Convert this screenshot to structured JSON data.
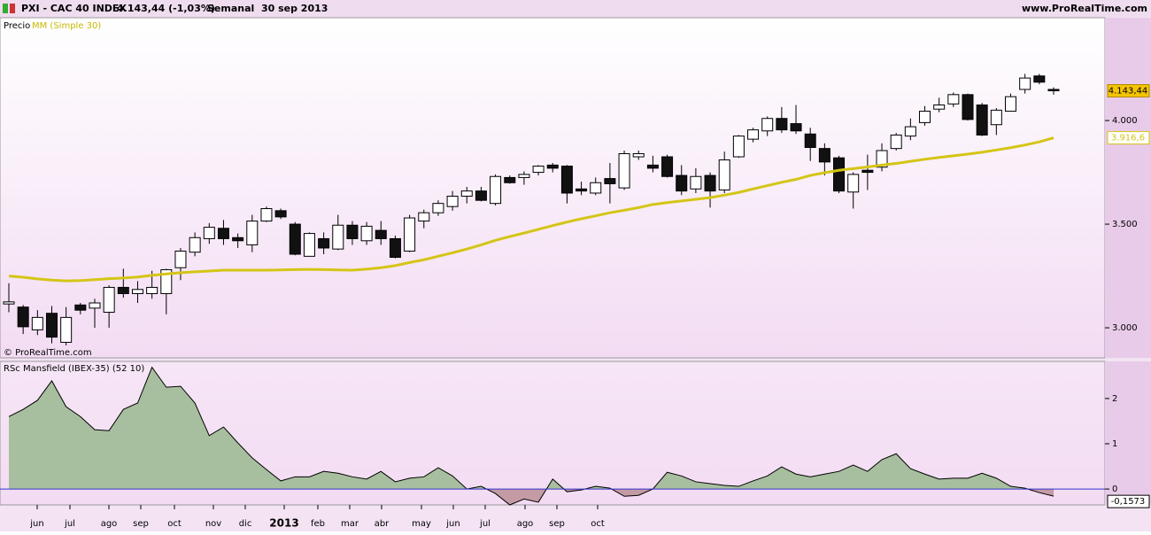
{
  "header": {
    "symbol": "PXI - CAC 40 INDEX",
    "quote": "4.143,44 (-1,03%)",
    "period": "Semanal  30 sep 2013",
    "site": "www.ProRealTime.com"
  },
  "chart_data": [
    {
      "type": "candlestick",
      "label": "Precio",
      "watermark": "© ProRealTime.com",
      "ylim": [
        2855,
        4496
      ],
      "yticks": [
        {
          "value": 4000,
          "label": "4.000"
        },
        {
          "value": 3500,
          "label": "3.500"
        },
        {
          "value": 3000,
          "label": "3.000"
        }
      ],
      "open": [
        3115,
        3100,
        2990,
        3070,
        2930,
        3110,
        3095,
        3075,
        3195,
        3165,
        3165,
        3165,
        3290,
        3365,
        3430,
        3480,
        3435,
        3400,
        3515,
        3565,
        3500,
        3345,
        3430,
        3380,
        3495,
        3420,
        3470,
        3430,
        3370,
        3515,
        3555,
        3585,
        3635,
        3660,
        3600,
        3725,
        3725,
        3750,
        3785,
        3780,
        3670,
        3650,
        3720,
        3675,
        3825,
        3785,
        3825,
        3735,
        3670,
        3735,
        3665,
        3825,
        3910,
        3950,
        4010,
        3985,
        3935,
        3865,
        3820,
        3655,
        3760,
        3775,
        3865,
        3925,
        3990,
        4055,
        4080,
        4125,
        4075,
        3980,
        4045,
        4150,
        4215,
        4150
      ],
      "high": [
        3215,
        3110,
        3085,
        3105,
        3100,
        3120,
        3140,
        3205,
        3285,
        3225,
        3275,
        3285,
        3385,
        3460,
        3505,
        3520,
        3455,
        3545,
        3585,
        3575,
        3510,
        3460,
        3460,
        3545,
        3515,
        3510,
        3515,
        3445,
        3545,
        3570,
        3615,
        3660,
        3680,
        3680,
        3740,
        3735,
        3755,
        3785,
        3795,
        3785,
        3705,
        3725,
        3795,
        3855,
        3855,
        3830,
        3835,
        3785,
        3770,
        3750,
        3850,
        3930,
        3965,
        4020,
        4065,
        4075,
        3965,
        3890,
        3830,
        3750,
        3835,
        3890,
        3940,
        4010,
        4070,
        4110,
        4135,
        4130,
        4085,
        4060,
        4130,
        4225,
        4225,
        4160
      ],
      "low": [
        3075,
        2970,
        2965,
        2925,
        2915,
        3065,
        3000,
        3000,
        3145,
        3120,
        3140,
        3065,
        3230,
        3345,
        3405,
        3400,
        3385,
        3365,
        3510,
        3525,
        3350,
        3345,
        3355,
        3375,
        3400,
        3400,
        3400,
        3335,
        3365,
        3480,
        3540,
        3565,
        3600,
        3610,
        3590,
        3695,
        3690,
        3735,
        3750,
        3600,
        3640,
        3640,
        3600,
        3665,
        3810,
        3750,
        3725,
        3640,
        3650,
        3580,
        3650,
        3820,
        3895,
        3925,
        3940,
        3935,
        3805,
        3735,
        3650,
        3575,
        3665,
        3755,
        3855,
        3905,
        3975,
        4040,
        4065,
        4000,
        3925,
        3930,
        4045,
        4130,
        4175,
        4125
      ],
      "close": [
        3125,
        3005,
        3050,
        2955,
        3050,
        3085,
        3120,
        3195,
        3165,
        3185,
        3195,
        3280,
        3370,
        3435,
        3485,
        3430,
        3420,
        3515,
        3575,
        3535,
        3355,
        3455,
        3385,
        3495,
        3430,
        3490,
        3430,
        3340,
        3530,
        3555,
        3600,
        3635,
        3660,
        3615,
        3730,
        3700,
        3740,
        3780,
        3770,
        3650,
        3660,
        3700,
        3695,
        3840,
        3840,
        3770,
        3730,
        3660,
        3730,
        3660,
        3810,
        3925,
        3955,
        4010,
        3955,
        3950,
        3870,
        3800,
        3660,
        3740,
        3750,
        3855,
        3930,
        3970,
        4045,
        4075,
        4125,
        4005,
        3930,
        4050,
        4115,
        4205,
        4185,
        4143.44
      ],
      "series": [
        {
          "name": "MM (Simple 30)",
          "color": "#d4c516",
          "values": [
            3250,
            3244,
            3236,
            3230,
            3226,
            3228,
            3232,
            3237,
            3240,
            3245,
            3253,
            3260,
            3266,
            3270,
            3274,
            3278,
            3278,
            3278,
            3278,
            3279,
            3281,
            3282,
            3281,
            3279,
            3278,
            3283,
            3290,
            3300,
            3315,
            3328,
            3345,
            3362,
            3380,
            3400,
            3422,
            3440,
            3457,
            3475,
            3493,
            3510,
            3526,
            3540,
            3555,
            3567,
            3580,
            3595,
            3604,
            3612,
            3620,
            3628,
            3640,
            3653,
            3670,
            3686,
            3702,
            3716,
            3735,
            3748,
            3760,
            3768,
            3776,
            3785,
            3793,
            3803,
            3813,
            3822,
            3830,
            3838,
            3847,
            3858,
            3869,
            3882,
            3897,
            3916.6
          ],
          "value_labels": {
            "73": "3.916,6"
          }
        }
      ],
      "price_tag": {
        "value": 4143.44,
        "label": "4.143,44"
      }
    },
    {
      "type": "area",
      "title": "RSc Mansfield (IBEX-35) (52 10)",
      "ylim": [
        -0.35,
        2.82
      ],
      "yticks": [
        2,
        1,
        0
      ],
      "colors": {
        "positive": "#a8bf9f",
        "negative": "#c49aa5",
        "line": "#000000",
        "zero": "#3333cc"
      },
      "values": [
        1.6,
        1.76,
        1.96,
        2.39,
        1.82,
        1.6,
        1.31,
        1.29,
        1.76,
        1.9,
        2.69,
        2.25,
        2.27,
        1.9,
        1.18,
        1.37,
        1.02,
        0.69,
        0.43,
        0.18,
        0.27,
        0.27,
        0.39,
        0.35,
        0.27,
        0.22,
        0.39,
        0.16,
        0.24,
        0.27,
        0.47,
        0.29,
        0,
        0.06,
        -0.1,
        -0.35,
        -0.22,
        -0.29,
        0.22,
        -0.06,
        -0.02,
        0.06,
        0.02,
        -0.16,
        -0.14,
        0,
        0.37,
        0.29,
        0.16,
        0.12,
        0.08,
        0.06,
        0.18,
        0.29,
        0.49,
        0.33,
        0.27,
        0.33,
        0.39,
        0.53,
        0.39,
        0.65,
        0.78,
        0.45,
        0.33,
        0.22,
        0.24,
        0.24,
        0.35,
        0.24,
        0.06,
        0.02,
        -0.08,
        -0.1573
      ],
      "value_labels": {
        "73": "-0,1573"
      }
    }
  ],
  "x_labels": [
    "jun",
    "jul",
    "ago",
    "sep",
    "oct",
    "nov",
    "dic",
    "2013",
    "feb",
    "mar",
    "abr",
    "may",
    "jun",
    "jul",
    "ago",
    "sep",
    "oct"
  ]
}
